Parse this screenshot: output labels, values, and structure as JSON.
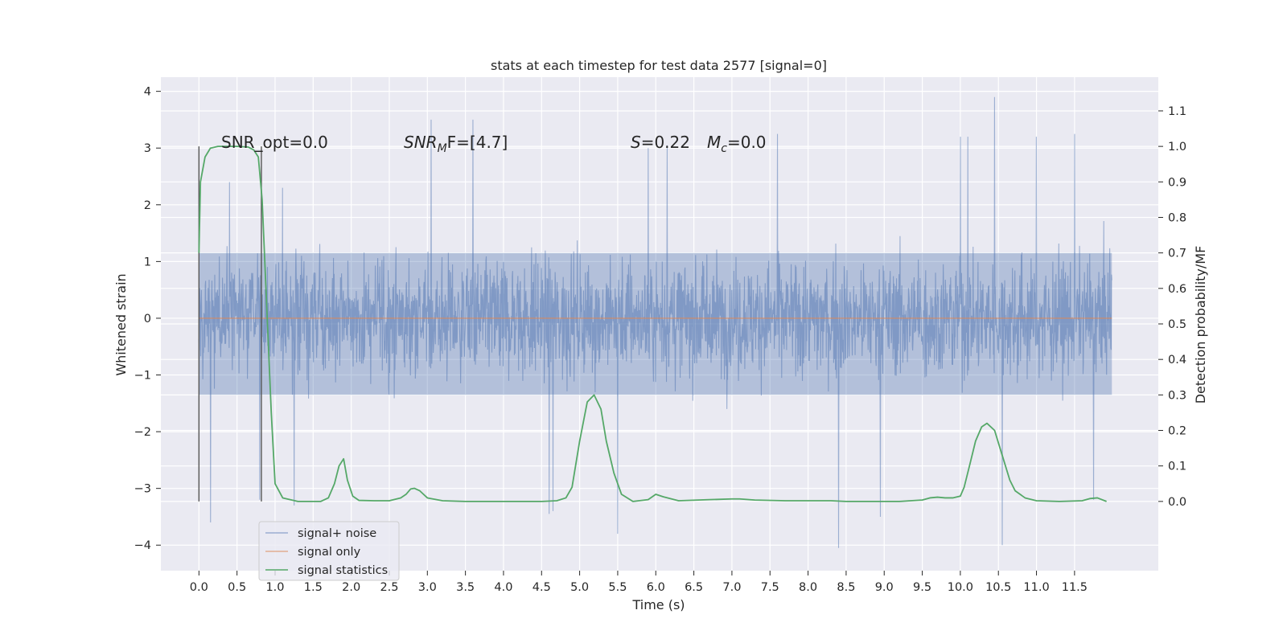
{
  "chart_data": {
    "type": "line",
    "title": "stats at each timestep for test data 2577 [signal=0]",
    "xlabel": "Time (s)",
    "ylabel": "Whitened strain",
    "y2label": "Detection probability/MF",
    "xlim": [
      -0.5,
      12.6
    ],
    "ylim": [
      -4.45,
      4.25
    ],
    "y2lim": [
      -0.195,
      1.195
    ],
    "xticks": [
      0.0,
      0.5,
      1.0,
      1.5,
      2.0,
      2.5,
      3.0,
      3.5,
      4.0,
      4.5,
      5.0,
      5.5,
      6.0,
      6.5,
      7.0,
      7.5,
      8.0,
      8.5,
      9.0,
      9.5,
      10.0,
      10.5,
      11.0,
      11.5
    ],
    "xtick_labels": [
      "0.0",
      "0.5",
      "1.0",
      "1.5",
      "2.0",
      "2.5",
      "3.0",
      "3.5",
      "4.0",
      "4.5",
      "5.0",
      "5.5",
      "6.0",
      "6.5",
      "7.0",
      "7.5",
      "8.0",
      "8.5",
      "9.0",
      "9.5",
      "10.0",
      "10.5",
      "11.0",
      "11.5"
    ],
    "yticks": [
      -4,
      -3,
      -2,
      -1,
      0,
      1,
      2,
      3,
      4
    ],
    "ytick_labels": [
      "−4",
      "−3",
      "−2",
      "−1",
      "0",
      "1",
      "2",
      "3",
      "4"
    ],
    "y2ticks": [
      0.0,
      0.1,
      0.2,
      0.3,
      0.4,
      0.5,
      0.6,
      0.7,
      0.8,
      0.9,
      1.0,
      1.1
    ],
    "y2tick_labels": [
      "0.0",
      "0.1",
      "0.2",
      "0.3",
      "0.4",
      "0.5",
      "0.6",
      "0.7",
      "0.8",
      "0.9",
      "1.0",
      "1.1"
    ],
    "grid": true,
    "legend_position": "lower-left",
    "annotations": {
      "snr_opt": "SNR_opt=0.0",
      "snr_mf_base": "SNR",
      "snr_mf_sub": "M",
      "snr_mf_rest": "F=[4.7]",
      "s_var": "S",
      "s_val": "=0.22",
      "mc_var": "M",
      "mc_sub": "c",
      "mc_val": "=0.0"
    },
    "series": [
      {
        "name": "signal+ noise",
        "color": "#4c72b0",
        "axis": "left",
        "style": "dense noise",
        "x_range": [
          0.0,
          11.99
        ],
        "core_band": [
          -1.35,
          1.15
        ],
        "typical_extremes": [
          -2.3,
          2.4
        ],
        "peaks": [
          [
            0.15,
            2.25
          ],
          [
            0.4,
            2.4
          ],
          [
            1.1,
            2.3
          ],
          [
            3.05,
            3.5
          ],
          [
            3.6,
            3.5
          ],
          [
            5.9,
            3.0
          ],
          [
            6.15,
            3.05
          ],
          [
            7.6,
            3.25
          ],
          [
            10.0,
            3.2
          ],
          [
            10.1,
            3.2
          ],
          [
            10.45,
            3.9
          ],
          [
            11.0,
            3.2
          ],
          [
            11.5,
            3.25
          ]
        ],
        "troughs": [
          [
            0.15,
            -3.6
          ],
          [
            0.8,
            -3.2
          ],
          [
            1.25,
            -3.3
          ],
          [
            4.6,
            -3.45
          ],
          [
            4.65,
            -3.4
          ],
          [
            5.5,
            -3.8
          ],
          [
            8.4,
            -4.05
          ],
          [
            8.95,
            -3.5
          ],
          [
            10.55,
            -4.0
          ],
          [
            11.75,
            -3.2
          ]
        ]
      },
      {
        "name": "signal only",
        "color": "#dd8452",
        "axis": "left",
        "x": [
          0.0,
          11.99
        ],
        "y": [
          0.0,
          0.0
        ]
      },
      {
        "name": "signal statistics",
        "color": "#55a868",
        "axis": "right",
        "x": [
          0.0,
          0.02,
          0.08,
          0.15,
          0.25,
          0.35,
          0.5,
          0.65,
          0.72,
          0.78,
          0.83,
          0.88,
          0.95,
          1.0,
          1.1,
          1.3,
          1.6,
          1.7,
          1.78,
          1.84,
          1.9,
          1.95,
          2.02,
          2.1,
          2.3,
          2.5,
          2.65,
          2.72,
          2.78,
          2.83,
          2.9,
          3.0,
          3.2,
          3.5,
          4.0,
          4.5,
          4.7,
          4.82,
          4.9,
          5.0,
          5.1,
          5.19,
          5.28,
          5.35,
          5.45,
          5.55,
          5.7,
          5.9,
          6.0,
          6.1,
          6.3,
          6.7,
          7.0,
          7.1,
          7.3,
          7.7,
          8.1,
          8.3,
          8.5,
          8.9,
          9.2,
          9.5,
          9.6,
          9.7,
          9.8,
          9.9,
          10.0,
          10.05,
          10.12,
          10.2,
          10.28,
          10.35,
          10.45,
          10.55,
          10.65,
          10.72,
          10.85,
          11.0,
          11.3,
          11.6,
          11.7,
          11.8,
          11.92
        ],
        "y": [
          0.7,
          0.9,
          0.97,
          0.995,
          1.0,
          1.0,
          1.0,
          0.998,
          0.99,
          0.97,
          0.85,
          0.6,
          0.25,
          0.05,
          0.01,
          0.0,
          0.0,
          0.01,
          0.05,
          0.1,
          0.12,
          0.06,
          0.015,
          0.003,
          0.002,
          0.002,
          0.01,
          0.02,
          0.035,
          0.037,
          0.03,
          0.01,
          0.002,
          0.0,
          0.0,
          0.0,
          0.002,
          0.01,
          0.04,
          0.17,
          0.28,
          0.3,
          0.26,
          0.17,
          0.08,
          0.02,
          0.0,
          0.005,
          0.02,
          0.013,
          0.002,
          0.005,
          0.007,
          0.007,
          0.004,
          0.002,
          0.002,
          0.002,
          0.0,
          0.0,
          0.0,
          0.004,
          0.01,
          0.012,
          0.01,
          0.01,
          0.015,
          0.04,
          0.1,
          0.17,
          0.21,
          0.22,
          0.2,
          0.13,
          0.06,
          0.03,
          0.01,
          0.002,
          0.0,
          0.002,
          0.008,
          0.01,
          0.0
        ]
      }
    ],
    "vertical_markers": [
      {
        "x": 0.0,
        "color": "#555555"
      },
      {
        "x": 0.82,
        "color": "#555555"
      }
    ]
  }
}
